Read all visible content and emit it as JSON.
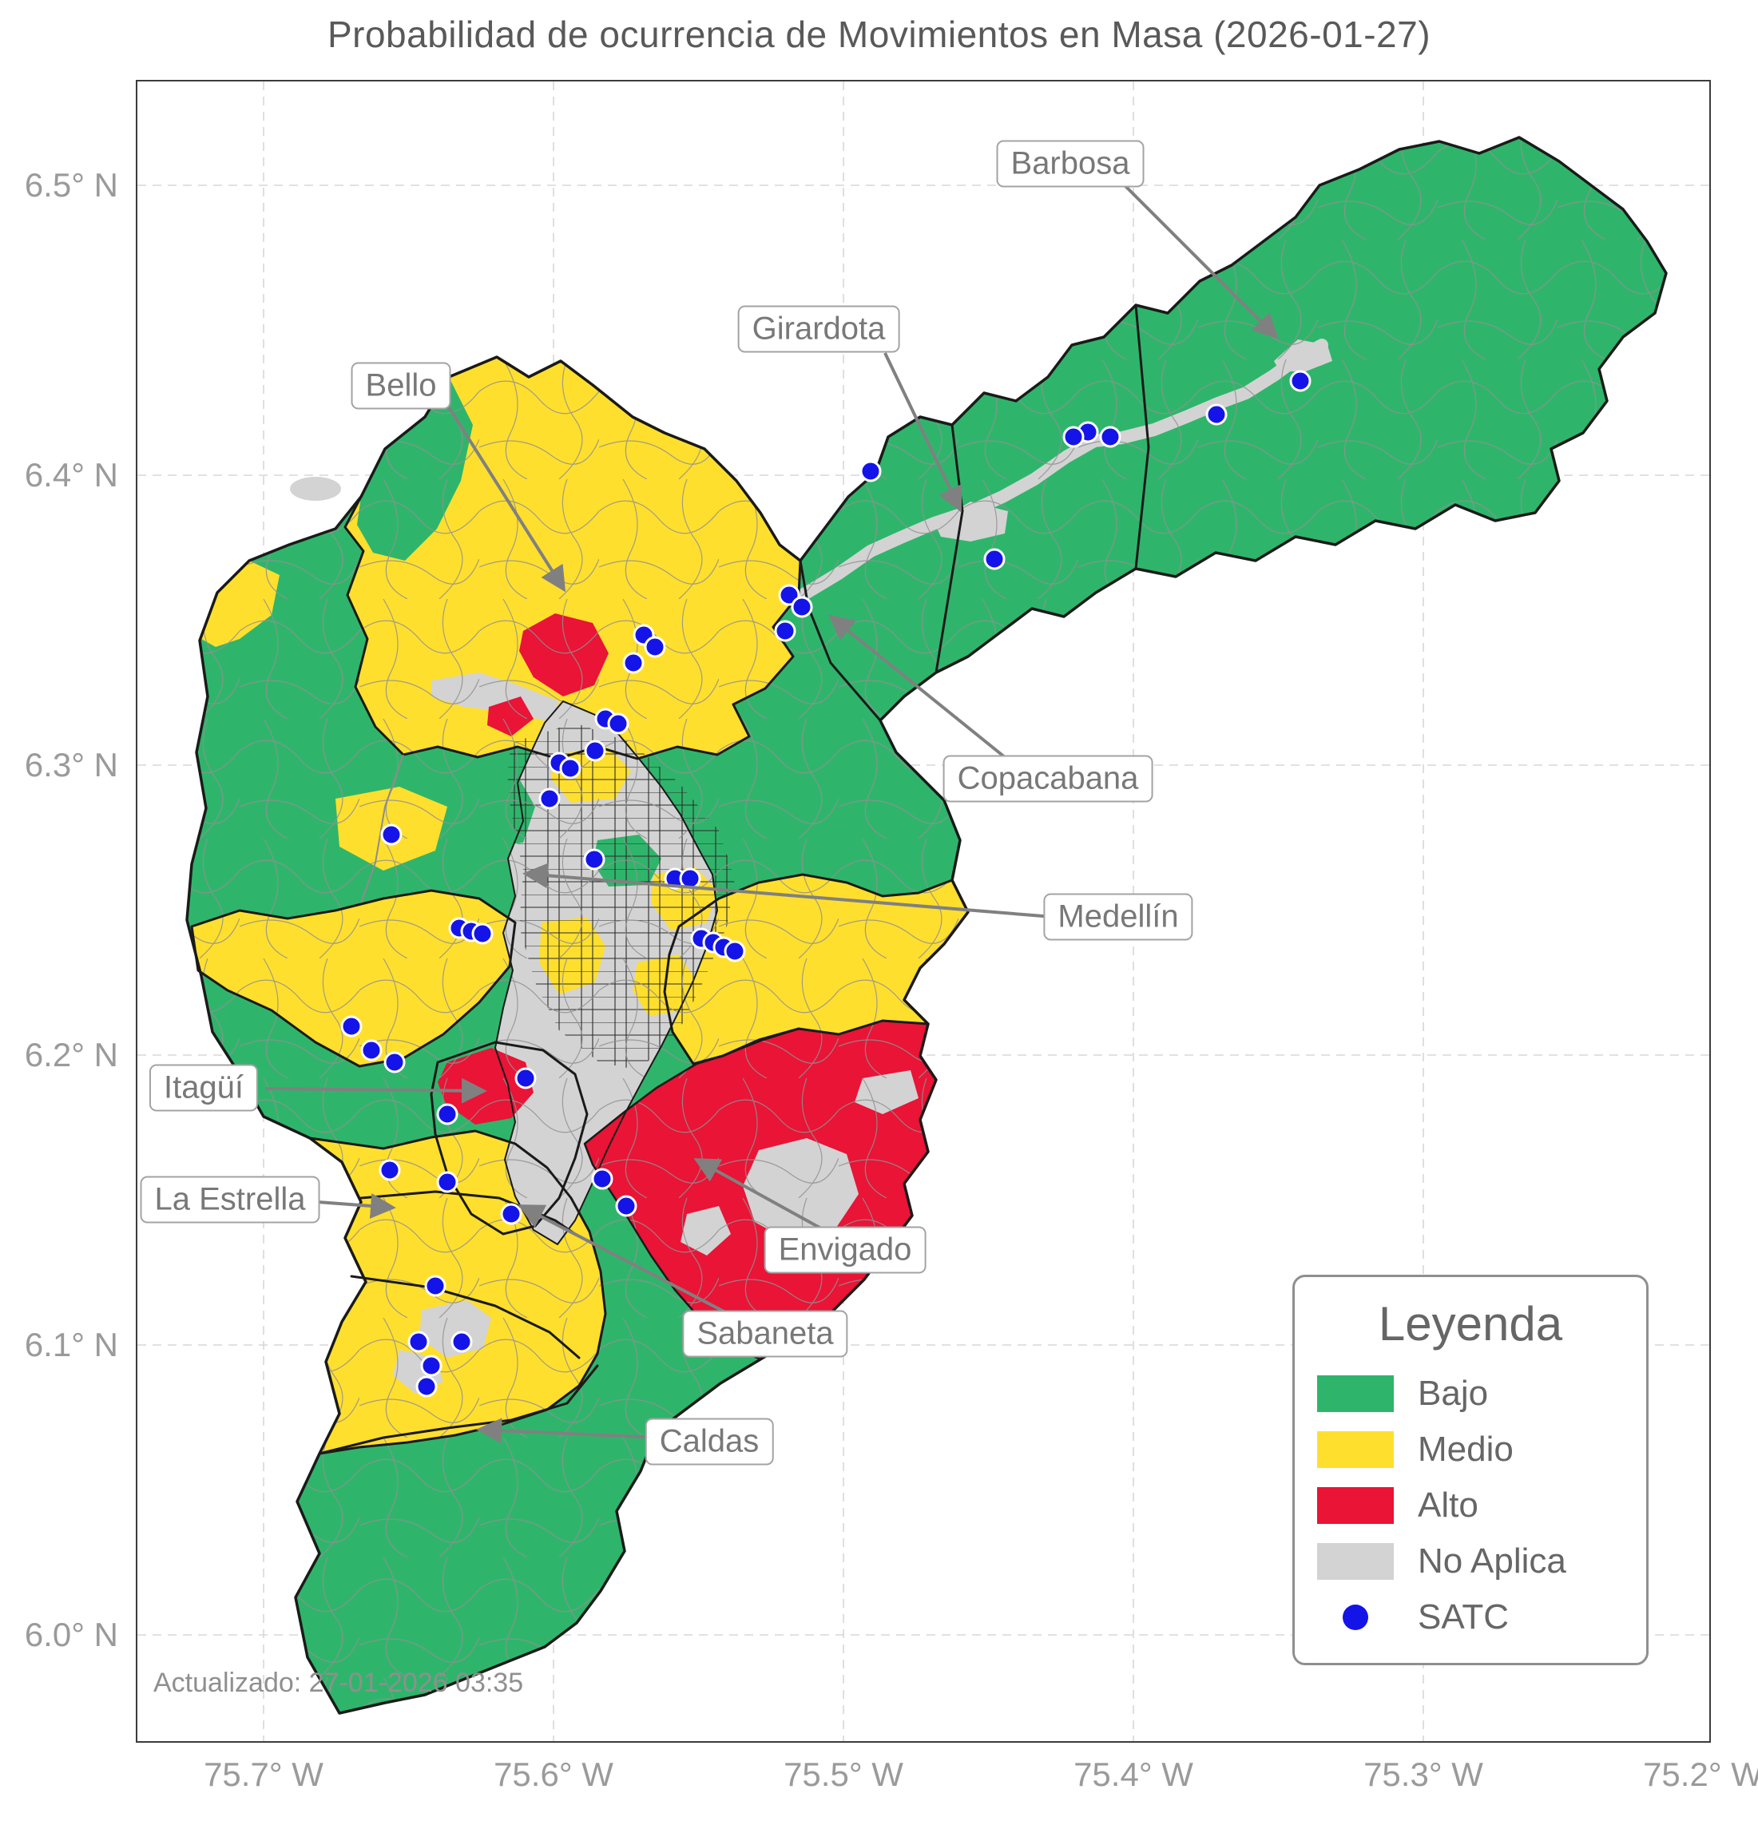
{
  "title": "Probabilidad de ocurrencia de Movimientos en Masa (2026-01-27)",
  "updated_text": "Actualizado: 27-01-2026 03:35",
  "axes": {
    "y_ticks": [
      "6.5° N",
      "6.4° N",
      "6.3° N",
      "6.2° N",
      "6.1° N",
      "6.0° N"
    ],
    "x_ticks": [
      "75.7° W",
      "75.6° W",
      "75.5° W",
      "75.4° W",
      "75.3° W",
      "75.2° W"
    ]
  },
  "legend": {
    "title": "Leyenda",
    "items": [
      {
        "label": "Bajo",
        "color": "#2FB56B"
      },
      {
        "label": "Medio",
        "color": "#FFDF2E"
      },
      {
        "label": "Alto",
        "color": "#E91436"
      },
      {
        "label": "No Aplica",
        "color": "#D3D3D3"
      },
      {
        "label": "SATC",
        "color": "#1414E8"
      }
    ]
  },
  "annotations": [
    {
      "label": "Barbosa"
    },
    {
      "label": "Girardota"
    },
    {
      "label": "Bello"
    },
    {
      "label": "Copacabana"
    },
    {
      "label": "Medellín"
    },
    {
      "label": "Itagüí"
    },
    {
      "label": "La Estrella"
    },
    {
      "label": "Envigado"
    },
    {
      "label": "Sabaneta"
    },
    {
      "label": "Caldas"
    }
  ],
  "colors": {
    "low": "#2FB56B",
    "medium": "#FFDF2E",
    "high": "#E91436",
    "na": "#D3D3D3",
    "satc": "#1414E8",
    "boundary": "#1a1a1a",
    "annotation": "#808080"
  },
  "satc_points": [
    [
      1628,
      477
    ],
    [
      1523,
      519
    ],
    [
      1390,
      547
    ],
    [
      1362,
      541
    ],
    [
      1344,
      547
    ],
    [
      1090,
      590
    ],
    [
      1245,
      700
    ],
    [
      988,
      745
    ],
    [
      1004,
      760
    ],
    [
      983,
      790
    ],
    [
      806,
      795
    ],
    [
      820,
      810
    ],
    [
      793,
      830
    ],
    [
      758,
      900
    ],
    [
      774,
      906
    ],
    [
      745,
      940
    ],
    [
      700,
      955
    ],
    [
      714,
      962
    ],
    [
      688,
      1000
    ],
    [
      490,
      1045
    ],
    [
      744,
      1076
    ],
    [
      845,
      1100
    ],
    [
      864,
      1100
    ],
    [
      575,
      1162
    ],
    [
      590,
      1166
    ],
    [
      604,
      1169
    ],
    [
      878,
      1175
    ],
    [
      893,
      1180
    ],
    [
      906,
      1186
    ],
    [
      920,
      1191
    ],
    [
      440,
      1285
    ],
    [
      465,
      1315
    ],
    [
      494,
      1330
    ],
    [
      658,
      1350
    ],
    [
      560,
      1395
    ],
    [
      488,
      1465
    ],
    [
      560,
      1480
    ],
    [
      754,
      1476
    ],
    [
      784,
      1510
    ],
    [
      640,
      1520
    ],
    [
      545,
      1610
    ],
    [
      524,
      1680
    ],
    [
      578,
      1680
    ],
    [
      540,
      1710
    ],
    [
      534,
      1736
    ]
  ]
}
